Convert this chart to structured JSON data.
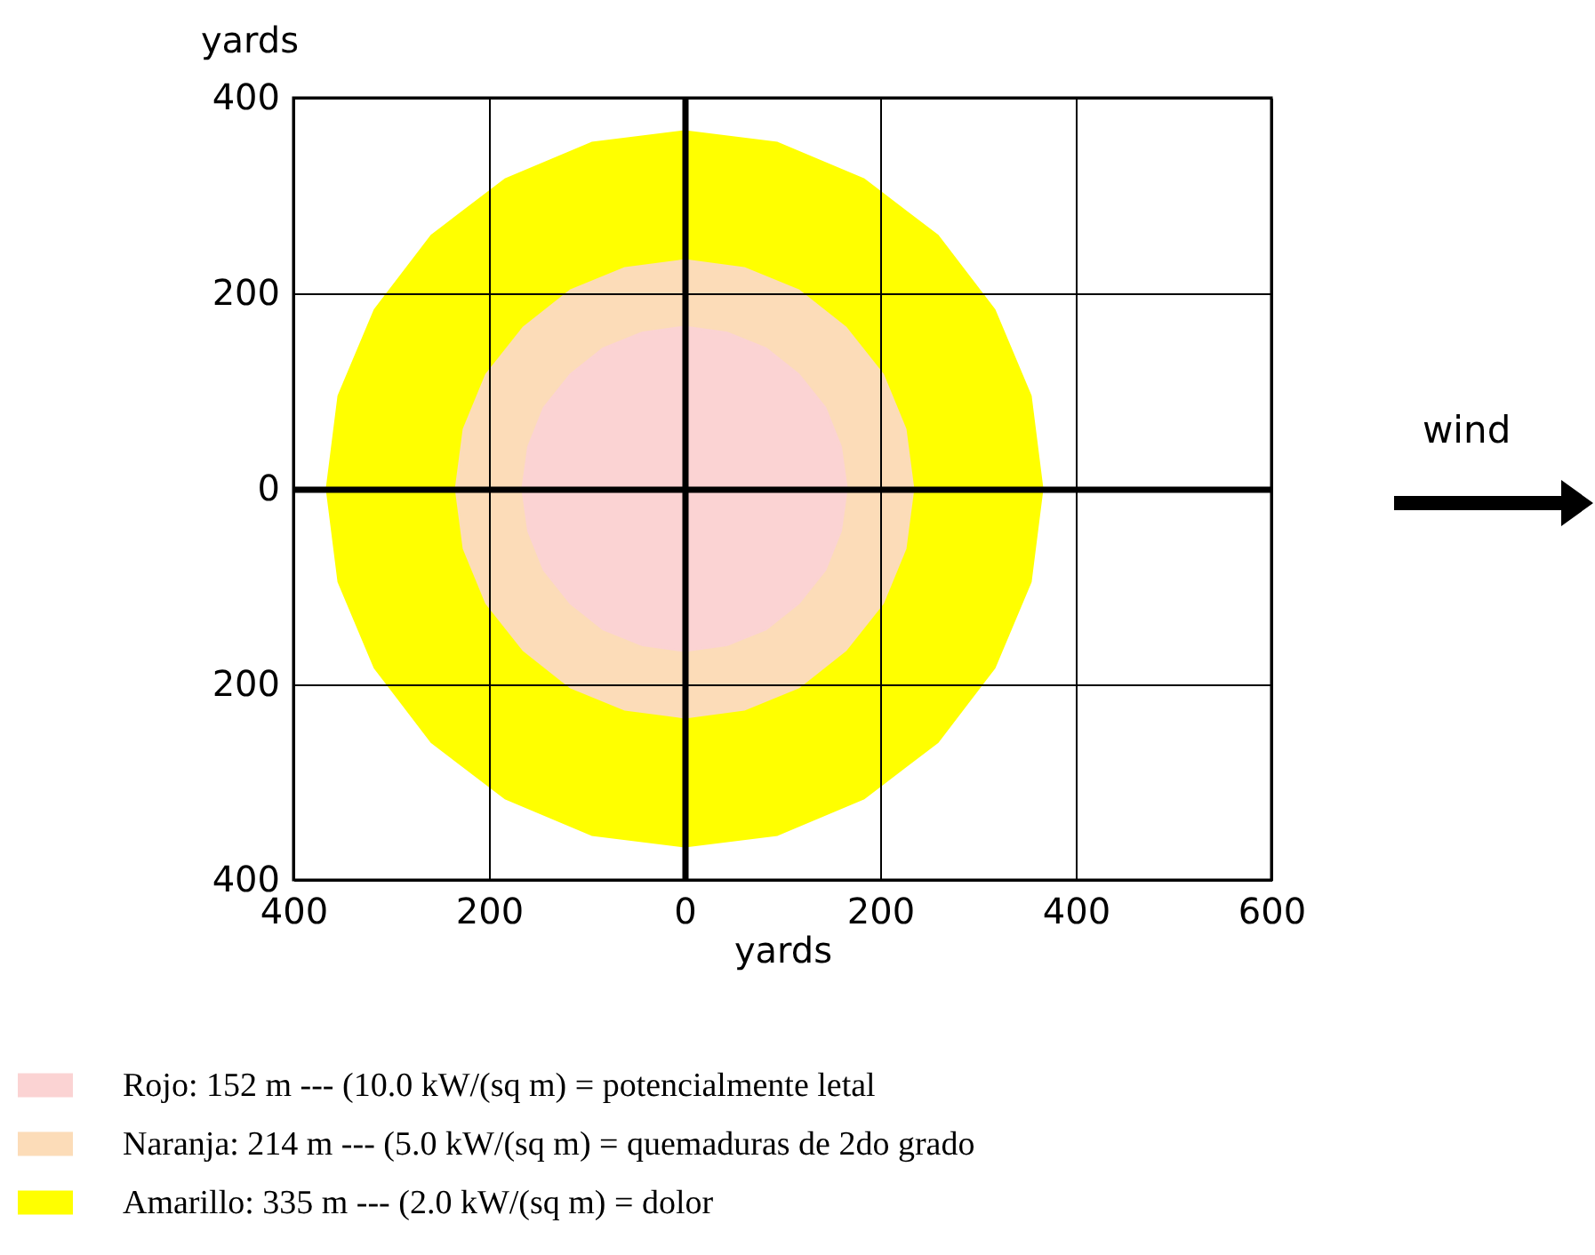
{
  "chart_data": {
    "type": "area",
    "xlabel": "yards",
    "ylabel": "yards",
    "xlim": [
      -400,
      600
    ],
    "ylim": [
      -400,
      400
    ],
    "xticks": [
      {
        "value": -400,
        "label": "400"
      },
      {
        "value": -200,
        "label": "200"
      },
      0,
      200,
      400,
      600
    ],
    "yticks": [
      {
        "value": -400,
        "label": "400"
      },
      {
        "value": -200,
        "label": "200"
      },
      0,
      200,
      400
    ],
    "grid": true,
    "legend": "bottom",
    "annotations": [
      "wind"
    ],
    "series": [
      {
        "name": "Rojo: 152 m --- (10.0 kW/(sq m) = potencialmente letal",
        "color": "#fbd3d3",
        "x": [
          166,
          160,
          144,
          117,
          83,
          43,
          0,
          -43,
          -83,
          -117,
          -144,
          -160,
          -166,
          -160,
          -144,
          -117,
          -83,
          -43,
          0,
          43,
          83,
          117,
          144,
          160,
          166
        ],
        "values": [
          0,
          43,
          83,
          117,
          144,
          160,
          166,
          160,
          144,
          117,
          83,
          43,
          0,
          -43,
          -83,
          -117,
          -144,
          -160,
          -166,
          -160,
          -144,
          -117,
          -83,
          -43,
          0
        ]
      },
      {
        "name": "Naranja: 214 m --- (5.0 kW/(sq m) = quemaduras de 2do grado",
        "color": "#fcdcb8",
        "x": [
          234,
          226,
          203,
          165,
          117,
          61,
          0,
          -61,
          -117,
          -165,
          -203,
          -226,
          -234,
          -226,
          -203,
          -165,
          -117,
          -61,
          0,
          61,
          117,
          165,
          203,
          226,
          234
        ],
        "values": [
          0,
          61,
          117,
          165,
          203,
          226,
          234,
          226,
          203,
          165,
          117,
          61,
          0,
          -61,
          -117,
          -165,
          -203,
          -226,
          -234,
          -226,
          -203,
          -165,
          -117,
          -61,
          0
        ]
      },
      {
        "name": "Amarillo: 335 m --- (2.0 kW/(sq m) = dolor",
        "color": "#ffff00",
        "x": [
          366,
          354,
          317,
          259,
          183,
          95,
          0,
          -95,
          -183,
          -259,
          -317,
          -354,
          -366,
          -354,
          -317,
          -259,
          -183,
          -95,
          0,
          95,
          183,
          259,
          317,
          354,
          366
        ],
        "values": [
          0,
          95,
          183,
          259,
          317,
          354,
          366,
          354,
          317,
          259,
          183,
          95,
          0,
          -95,
          -183,
          -259,
          -317,
          -354,
          -366,
          -354,
          -317,
          -259,
          -183,
          -95,
          0
        ]
      }
    ]
  }
}
